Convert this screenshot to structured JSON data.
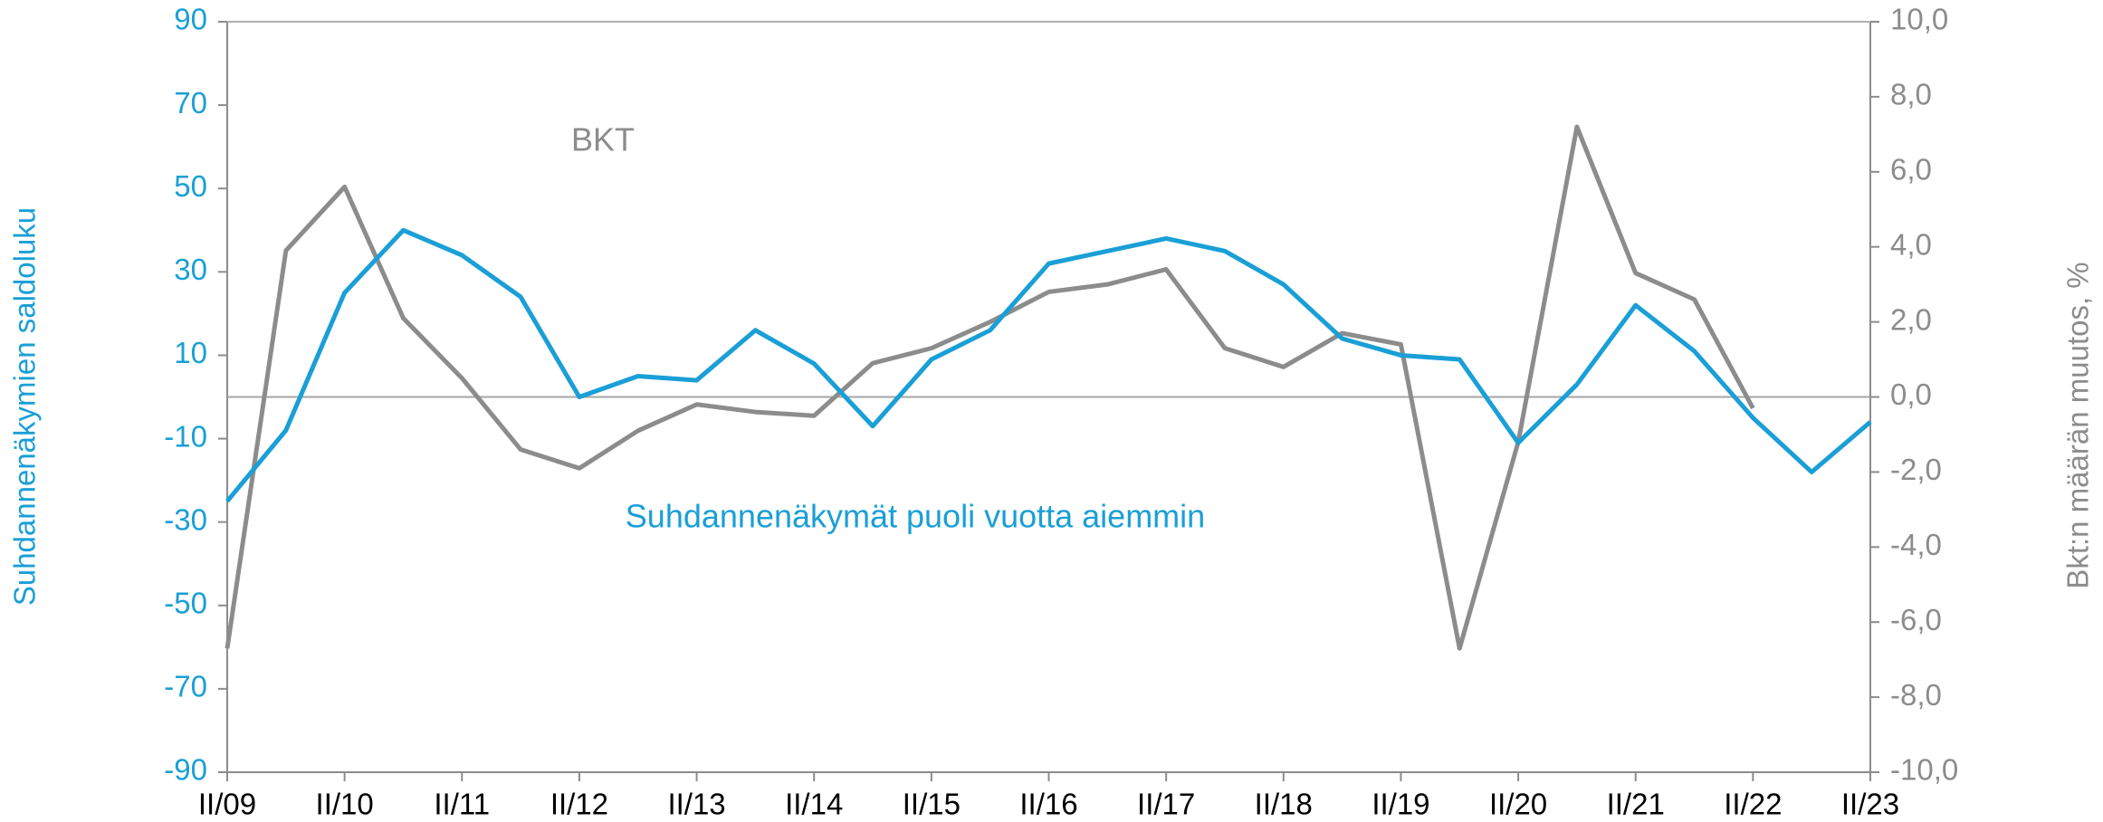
{
  "chart_data": {
    "type": "line",
    "categories": [
      "II/09",
      null,
      "II/10",
      null,
      "II/11",
      null,
      "II/12",
      null,
      "II/13",
      null,
      "II/14",
      null,
      "II/15",
      null,
      "II/16",
      null,
      "II/17",
      null,
      "II/18",
      null,
      "II/19",
      null,
      "II/20",
      null,
      "II/21",
      null,
      "II/22",
      null,
      "II/23"
    ],
    "series": [
      {
        "name": "Suhdannenäkymät puoli vuotta aiemmin",
        "color": "#1a9fd6",
        "values": [
          -25,
          -8,
          25,
          40,
          34,
          24,
          0,
          5,
          4,
          16,
          8,
          -7,
          9,
          16,
          32,
          35,
          38,
          35,
          27,
          14,
          10,
          9,
          -11,
          3,
          22,
          11,
          -5,
          -18,
          -6
        ]
      },
      {
        "name": "BKT",
        "color": "#8c8c8c",
        "axis": "y2",
        "values": [
          -6.7,
          3.9,
          5.6,
          2.1,
          0.5,
          -1.4,
          -1.9,
          -0.9,
          -0.2,
          -0.4,
          -0.5,
          0.9,
          1.3,
          2.0,
          2.8,
          3.0,
          3.4,
          1.3,
          0.8,
          1.7,
          1.4,
          -6.7,
          -1.2,
          7.2,
          3.3,
          2.6,
          -0.3,
          null,
          null
        ]
      }
    ],
    "ylabel": "Suhdannenäkymien saldoluku",
    "y2label": "Bkt:n määrän muutos, %",
    "ylim": [
      -90,
      90
    ],
    "yticks": [
      -90,
      -70,
      -50,
      -30,
      -10,
      10,
      30,
      50,
      70,
      90
    ],
    "y2lim": [
      -10,
      10
    ],
    "y2ticks": [
      {
        "value": -10,
        "label": "-10,0"
      },
      {
        "value": -8,
        "label": "-8,0"
      },
      {
        "value": -6,
        "label": "-6,0"
      },
      {
        "value": -4,
        "label": "-4,0"
      },
      {
        "value": -2,
        "label": "-2,0"
      },
      {
        "value": 0,
        "label": "0,0"
      },
      {
        "value": 2,
        "label": "2,0"
      },
      {
        "value": 4,
        "label": "4,0"
      },
      {
        "value": 6,
        "label": "6,0"
      },
      {
        "value": 8,
        "label": "8,0"
      },
      {
        "value": 10,
        "label": "10,0"
      }
    ],
    "grid": false
  }
}
